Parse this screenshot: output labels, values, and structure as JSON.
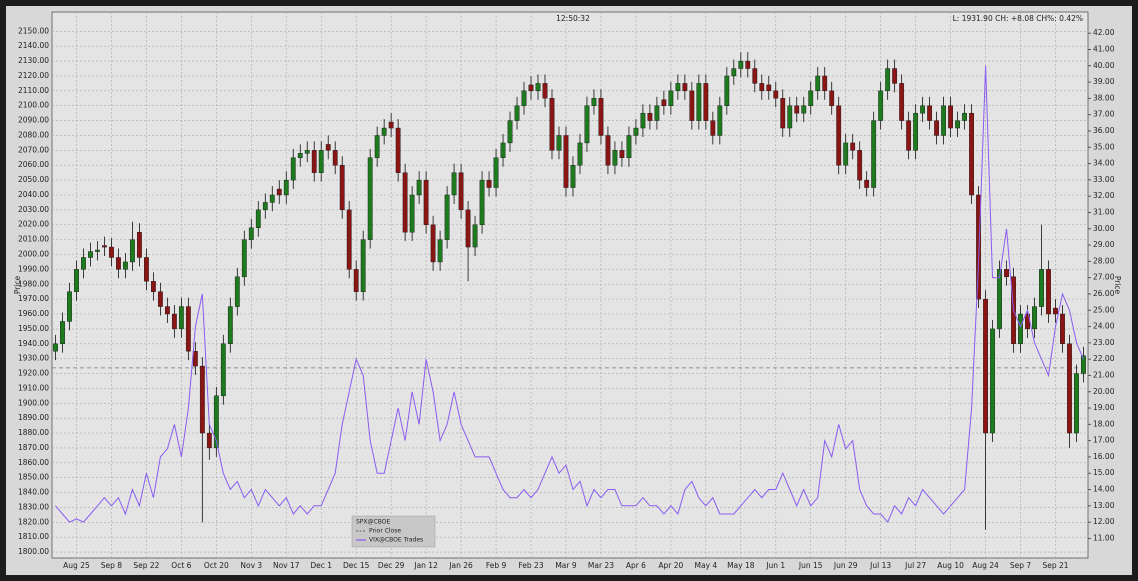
{
  "chart_data": {
    "type": "candlestick",
    "title": "12:50:32",
    "subtitle": "L: 1931.90 CH: +8.08 CH%: 0.42%",
    "y_label": "Price",
    "y2_label": "Price",
    "categories": [
      null,
      null,
      null,
      "Aug 25",
      null,
      null,
      null,
      null,
      "Sep 8",
      null,
      null,
      null,
      null,
      "Sep 22",
      null,
      null,
      null,
      null,
      "Oct 6",
      null,
      null,
      null,
      null,
      "Oct 20",
      null,
      null,
      null,
      null,
      "Nov 3",
      null,
      null,
      null,
      null,
      "Nov 17",
      null,
      null,
      null,
      null,
      "Dec 1",
      null,
      null,
      null,
      null,
      "Dec 15",
      null,
      null,
      null,
      null,
      "Dec 29",
      null,
      null,
      null,
      null,
      "Jan 12",
      null,
      null,
      null,
      null,
      "Jan 26",
      null,
      null,
      null,
      null,
      "Feb 9",
      null,
      null,
      null,
      null,
      "Feb 23",
      null,
      null,
      null,
      null,
      "Mar 9",
      null,
      null,
      null,
      null,
      "Mar 23",
      null,
      null,
      null,
      null,
      "Apr 6",
      null,
      null,
      null,
      null,
      "Apr 20",
      null,
      null,
      null,
      null,
      "May 4",
      null,
      null,
      null,
      null,
      "May 18",
      null,
      null,
      null,
      null,
      "Jun 1",
      null,
      null,
      null,
      null,
      "Jun 15",
      null,
      null,
      null,
      null,
      "Jun 29",
      null,
      null,
      null,
      null,
      "Jul 13",
      null,
      null,
      null,
      null,
      "Jul 27",
      null,
      null,
      null,
      null,
      "Aug 10",
      null,
      null,
      null,
      null,
      "Aug 24",
      null,
      null,
      null,
      null,
      "Sep 7",
      null,
      null,
      null,
      null,
      "Sep 21",
      null,
      null,
      null,
      null
    ],
    "series": [
      {
        "name": "SPX@CBOE",
        "type": "candlestick",
        "up_color": "#1e7a1e",
        "down_color": "#8a1515",
        "open": [
          1935,
          1940,
          1955,
          1975,
          1990,
          1998,
          2002,
          2006,
          2005,
          1998,
          1990,
          1995,
          2015,
          1998,
          1982,
          1975,
          1965,
          1960,
          1950,
          1965,
          1935,
          1925,
          1880,
          1870,
          1905,
          1940,
          1965,
          1985,
          2010,
          2018,
          2030,
          2035,
          2044,
          2040,
          2050,
          2065,
          2068,
          2070,
          2055,
          2074,
          2070,
          2060,
          2030,
          1990,
          1975,
          2010,
          2065,
          2080,
          2089,
          2085,
          2055,
          2015,
          2040,
          2050,
          2020,
          1995,
          2010,
          2040,
          2055,
          2030,
          2005,
          2020,
          2050,
          2045,
          2065,
          2075,
          2090,
          2100,
          2114,
          2110,
          2115,
          2105,
          2070,
          2080,
          2045,
          2060,
          2075,
          2100,
          2105,
          2080,
          2060,
          2070,
          2065,
          2080,
          2085,
          2095,
          2090,
          2104,
          2100,
          2110,
          2115,
          2110,
          2090,
          2115,
          2090,
          2080,
          2100,
          2120,
          2125,
          2130,
          2125,
          2115,
          2114,
          2110,
          2105,
          2085,
          2100,
          2095,
          2100,
          2110,
          2120,
          2110,
          2100,
          2060,
          2075,
          2070,
          2050,
          2045,
          2090,
          2110,
          2125,
          2115,
          2090,
          2070,
          2095,
          2100,
          2090,
          2080,
          2100,
          2085,
          2090,
          2095,
          2040,
          1970,
          1880,
          1950,
          1990,
          1985,
          1940,
          1960,
          1950,
          1965,
          1990,
          1964,
          1960,
          1940,
          1880,
          1920
        ],
        "high": [
          1946,
          1961,
          1981,
          1996,
          2004,
          2008,
          2009,
          2012,
          2011,
          2004,
          2001,
          2022,
          2021,
          2004,
          1988,
          1981,
          1971,
          1966,
          1971,
          1971,
          1941,
          1931,
          1886,
          1911,
          1946,
          1971,
          1991,
          2016,
          2024,
          2036,
          2041,
          2046,
          2050,
          2056,
          2071,
          2074,
          2076,
          2076,
          2076,
          2080,
          2076,
          2066,
          2036,
          1996,
          2016,
          2071,
          2086,
          2091,
          2095,
          2091,
          2061,
          2046,
          2056,
          2056,
          2026,
          2016,
          2046,
          2061,
          2061,
          2036,
          2026,
          2056,
          2056,
          2071,
          2081,
          2096,
          2106,
          2116,
          2120,
          2121,
          2121,
          2111,
          2086,
          2086,
          2066,
          2081,
          2106,
          2111,
          2111,
          2086,
          2076,
          2076,
          2086,
          2091,
          2101,
          2101,
          2106,
          2110,
          2116,
          2121,
          2121,
          2116,
          2121,
          2121,
          2096,
          2106,
          2126,
          2131,
          2136,
          2136,
          2131,
          2121,
          2120,
          2116,
          2111,
          2106,
          2106,
          2106,
          2116,
          2126,
          2126,
          2116,
          2106,
          2081,
          2081,
          2076,
          2056,
          2096,
          2116,
          2131,
          2131,
          2121,
          2096,
          2101,
          2106,
          2106,
          2096,
          2106,
          2106,
          2096,
          2101,
          2101,
          2046,
          1976,
          1956,
          1996,
          1996,
          1991,
          1966,
          1966,
          1971,
          2020,
          1996,
          1970,
          1966,
          1946,
          1926,
          1938
        ],
        "low": [
          1929,
          1934,
          1949,
          1969,
          1984,
          1992,
          1996,
          1999,
          1992,
          1984,
          1984,
          1989,
          1992,
          1976,
          1969,
          1959,
          1954,
          1944,
          1944,
          1929,
          1919,
          1820,
          1862,
          1864,
          1899,
          1934,
          1959,
          1979,
          2004,
          2012,
          2024,
          2029,
          2034,
          2034,
          2044,
          2059,
          2062,
          2049,
          2049,
          2064,
          2054,
          2024,
          1984,
          1969,
          1969,
          2004,
          2059,
          2074,
          2079,
          2049,
          2009,
          2009,
          2034,
          2014,
          1989,
          1989,
          2004,
          2034,
          2024,
          1982,
          1999,
          2014,
          2039,
          2039,
          2059,
          2069,
          2084,
          2094,
          2104,
          2104,
          2099,
          2064,
          2064,
          2039,
          2039,
          2054,
          2069,
          2094,
          2074,
          2054,
          2054,
          2059,
          2059,
          2074,
          2079,
          2084,
          2084,
          2094,
          2094,
          2104,
          2104,
          2084,
          2084,
          2084,
          2074,
          2074,
          2094,
          2114,
          2119,
          2119,
          2109,
          2104,
          2104,
          2099,
          2079,
          2079,
          2089,
          2089,
          2094,
          2104,
          2104,
          2094,
          2054,
          2054,
          2064,
          2044,
          2039,
          2039,
          2084,
          2104,
          2109,
          2084,
          2064,
          2064,
          2089,
          2084,
          2074,
          2074,
          2079,
          2079,
          2084,
          2034,
          1964,
          1815,
          1874,
          1944,
          1979,
          1934,
          1934,
          1944,
          1944,
          1959,
          1954,
          1954,
          1934,
          1870,
          1874,
          1914
        ],
        "close": [
          1940,
          1955,
          1975,
          1990,
          1998,
          2002,
          2003,
          2005,
          1998,
          1990,
          1995,
          2010,
          1998,
          1982,
          1975,
          1965,
          1960,
          1950,
          1965,
          1935,
          1925,
          1880,
          1870,
          1905,
          1940,
          1965,
          1985,
          2010,
          2018,
          2030,
          2035,
          2040,
          2040,
          2050,
          2065,
          2068,
          2070,
          2055,
          2070,
          2070,
          2060,
          2030,
          1990,
          1975,
          2010,
          2065,
          2080,
          2085,
          2085,
          2055,
          2015,
          2040,
          2050,
          2020,
          1995,
          2010,
          2040,
          2055,
          2030,
          2005,
          2020,
          2050,
          2045,
          2065,
          2075,
          2090,
          2100,
          2110,
          2110,
          2115,
          2105,
          2070,
          2080,
          2045,
          2060,
          2075,
          2100,
          2105,
          2080,
          2060,
          2070,
          2065,
          2080,
          2085,
          2095,
          2090,
          2100,
          2100,
          2110,
          2115,
          2110,
          2090,
          2115,
          2090,
          2080,
          2100,
          2120,
          2125,
          2130,
          2125,
          2115,
          2110,
          2110,
          2105,
          2085,
          2100,
          2095,
          2100,
          2110,
          2120,
          2110,
          2100,
          2060,
          2075,
          2070,
          2050,
          2045,
          2090,
          2110,
          2125,
          2115,
          2090,
          2070,
          2095,
          2100,
          2090,
          2080,
          2100,
          2085,
          2090,
          2095,
          2040,
          1970,
          1880,
          1950,
          1990,
          1985,
          1940,
          1960,
          1950,
          1965,
          1990,
          1960,
          1960,
          1940,
          1880,
          1920,
          1932
        ]
      },
      {
        "name": "VIX@CBOE Trades",
        "type": "line",
        "axis": "y2",
        "color": "#8b5cf0",
        "values": [
          13,
          12.5,
          12,
          12.2,
          12,
          12.5,
          13,
          13.5,
          13,
          13.5,
          12.5,
          14,
          13,
          15,
          13.5,
          16,
          16.5,
          18,
          16,
          19,
          24,
          26,
          18,
          17,
          15,
          14,
          14.5,
          13.5,
          14,
          13,
          14,
          13.5,
          13,
          13.5,
          12.5,
          13,
          12.5,
          13,
          13,
          14,
          15,
          18,
          20,
          22,
          21,
          17,
          15,
          15,
          17,
          19,
          17,
          20,
          18,
          22,
          20,
          17,
          18,
          20,
          18,
          17,
          16,
          16,
          16,
          15,
          14,
          13.5,
          13.5,
          14,
          13.5,
          14,
          15,
          16,
          15,
          15.5,
          14,
          14.5,
          13,
          14,
          13.5,
          14,
          14,
          13,
          13,
          13,
          13.5,
          13,
          13,
          12.5,
          13,
          12.5,
          14,
          14.5,
          13.5,
          13,
          13.5,
          12.5,
          12.5,
          12.5,
          13,
          13.5,
          14,
          13.5,
          14,
          14,
          15,
          14,
          13,
          14,
          13,
          13.5,
          17,
          16,
          18,
          16.5,
          17,
          14,
          13,
          12.5,
          12.5,
          12,
          13,
          12.5,
          13.5,
          13,
          14,
          13.5,
          13,
          12.5,
          13,
          13.5,
          14,
          19,
          28,
          40,
          27,
          27,
          30,
          25,
          24,
          25,
          23,
          22,
          21,
          24,
          26,
          25,
          23,
          22
        ]
      }
    ],
    "prior_close": {
      "name": "Prior Close",
      "value": 1923.8,
      "color": "#777777"
    },
    "ylim": [
      1796,
      2163
    ],
    "yticks": [
      {
        "value": 1800,
        "label": "1800.00"
      },
      {
        "value": 1810,
        "label": "1810.00"
      },
      {
        "value": 1820,
        "label": "1820.00"
      },
      {
        "value": 1830,
        "label": "1830.00"
      },
      {
        "value": 1840,
        "label": "1840.00"
      },
      {
        "value": 1850,
        "label": "1850.00"
      },
      {
        "value": 1860,
        "label": "1860.00"
      },
      {
        "value": 1870,
        "label": "1870.00"
      },
      {
        "value": 1880,
        "label": "1880.00"
      },
      {
        "value": 1890,
        "label": "1890.00"
      },
      {
        "value": 1900,
        "label": "1900.00"
      },
      {
        "value": 1910,
        "label": "1910.00"
      },
      {
        "value": 1920,
        "label": "1920.00"
      },
      {
        "value": 1930,
        "label": "1930.00"
      },
      {
        "value": 1940,
        "label": "1940.00"
      },
      {
        "value": 1950,
        "label": "1950.00"
      },
      {
        "value": 1960,
        "label": "1960.00"
      },
      {
        "value": 1970,
        "label": "1970.00"
      },
      {
        "value": 1980,
        "label": "1980.00"
      },
      {
        "value": 1990,
        "label": "1990.00"
      },
      {
        "value": 2000,
        "label": "2000.00"
      },
      {
        "value": 2010,
        "label": "2010.00"
      },
      {
        "value": 2020,
        "label": "2020.00"
      },
      {
        "value": 2030,
        "label": "2030.00"
      },
      {
        "value": 2040,
        "label": "2040.00"
      },
      {
        "value": 2050,
        "label": "2050.00"
      },
      {
        "value": 2060,
        "label": "2060.00"
      },
      {
        "value": 2070,
        "label": "2070.00"
      },
      {
        "value": 2080,
        "label": "2080.00"
      },
      {
        "value": 2090,
        "label": "2090.00"
      },
      {
        "value": 2100,
        "label": "2100.00"
      },
      {
        "value": 2110,
        "label": "2110.00"
      },
      {
        "value": 2120,
        "label": "2120.00"
      },
      {
        "value": 2130,
        "label": "2130.00"
      },
      {
        "value": 2140,
        "label": "2140.00"
      },
      {
        "value": 2150,
        "label": "2150.00"
      }
    ],
    "y2lim": [
      9.8,
      43.3
    ],
    "y2ticks": [
      {
        "value": 11,
        "label": "11.00"
      },
      {
        "value": 12,
        "label": "12.00"
      },
      {
        "value": 13,
        "label": "13.00"
      },
      {
        "value": 14,
        "label": "14.00"
      },
      {
        "value": 15,
        "label": "15.00"
      },
      {
        "value": 16,
        "label": "16.00"
      },
      {
        "value": 17,
        "label": "17.00"
      },
      {
        "value": 18,
        "label": "18.00"
      },
      {
        "value": 19,
        "label": "19.00"
      },
      {
        "value": 20,
        "label": "20.00"
      },
      {
        "value": 21,
        "label": "21.00"
      },
      {
        "value": 22,
        "label": "22.00"
      },
      {
        "value": 23,
        "label": "23.00"
      },
      {
        "value": 24,
        "label": "24.00"
      },
      {
        "value": 25,
        "label": "25.00"
      },
      {
        "value": 26,
        "label": "26.00"
      },
      {
        "value": 27,
        "label": "27.00"
      },
      {
        "value": 28,
        "label": "28.00"
      },
      {
        "value": 29,
        "label": "29.00"
      },
      {
        "value": 30,
        "label": "30.00"
      },
      {
        "value": 31,
        "label": "31.00"
      },
      {
        "value": 32,
        "label": "32.00"
      },
      {
        "value": 33,
        "label": "33.00"
      },
      {
        "value": 34,
        "label": "34.00"
      },
      {
        "value": 35,
        "label": "35.00"
      },
      {
        "value": 36,
        "label": "36.00"
      },
      {
        "value": 37,
        "label": "37.00"
      },
      {
        "value": 38,
        "label": "38.00"
      },
      {
        "value": 39,
        "label": "39.00"
      },
      {
        "value": 40,
        "label": "40.00"
      },
      {
        "value": 41,
        "label": "41.00"
      },
      {
        "value": 42,
        "label": "42.00"
      }
    ],
    "grid": true
  }
}
